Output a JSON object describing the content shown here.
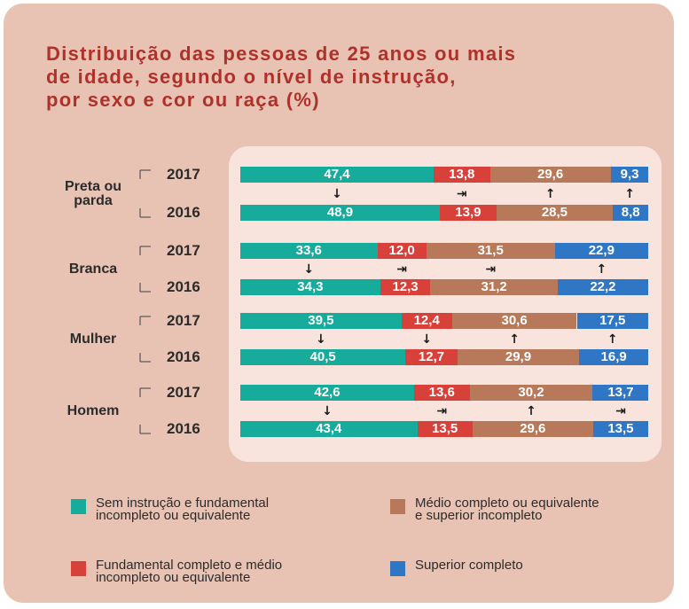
{
  "chart_data": {
    "type": "bar",
    "orientation": "horizontal",
    "stacked": true,
    "title": "Distribuição das pessoas de 25 anos ou mais\nde idade, segundo o nível de instrução,\npor sexo e cor ou raça (%)",
    "groups": [
      "Preta ou\nparda",
      "Branca",
      "Mulher",
      "Homem"
    ],
    "categories": [
      "2017",
      "2016",
      "2017",
      "2016",
      "2017",
      "2016",
      "2017",
      "2016"
    ],
    "series": [
      {
        "name": "Sem instrução e fundamental\nincompleto ou equivalente",
        "color": "#17ab9b",
        "values": [
          47.4,
          48.9,
          33.6,
          34.3,
          39.5,
          40.5,
          42.6,
          43.4
        ],
        "value_labels": [
          "47,4",
          "48,9",
          "33,6",
          "34,3",
          "39,5",
          "40,5",
          "42,6",
          "43,4"
        ]
      },
      {
        "name": "Fundamental completo e médio\nincompleto ou equivalente",
        "color": "#d8403a",
        "values": [
          13.8,
          13.9,
          12.0,
          12.3,
          12.4,
          12.7,
          13.6,
          13.5
        ],
        "value_labels": [
          "13,8",
          "13,9",
          "12,0",
          "12,3",
          "12,4",
          "12,7",
          "13,6",
          "13,5"
        ]
      },
      {
        "name": "Médio completo ou equivalente\ne superior incompleto",
        "color": "#b8795a",
        "values": [
          29.6,
          28.5,
          31.5,
          31.2,
          30.6,
          29.9,
          30.2,
          29.6
        ],
        "value_labels": [
          "29,6",
          "28,5",
          "31,5",
          "31,2",
          "30,6",
          "29,9",
          "30,2",
          "29,6"
        ]
      },
      {
        "name": "Superior completo",
        "color": "#2f77c5",
        "values": [
          9.3,
          8.8,
          22.9,
          22.2,
          17.5,
          16.9,
          13.7,
          13.5
        ],
        "value_labels": [
          "9,3",
          "8,8",
          "22,9",
          "22,2",
          "17,5",
          "16,9",
          "13,7",
          "13,5"
        ]
      }
    ],
    "trend_arrows": [
      [
        "↓",
        "⇥",
        "↑",
        "↑"
      ],
      [
        "↓",
        "⇥",
        "⇥",
        "↑"
      ],
      [
        "↓",
        "↓",
        "↑",
        "↑"
      ],
      [
        "↓",
        "⇥",
        "↑",
        "⇥"
      ]
    ],
    "xlim": [
      0,
      100
    ]
  }
}
